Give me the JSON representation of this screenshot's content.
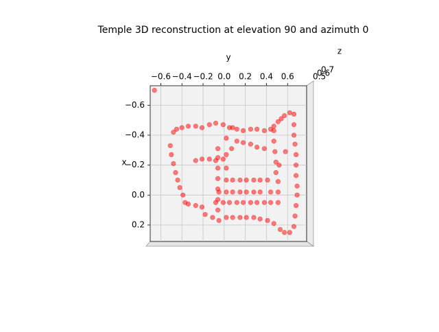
{
  "chart_data": {
    "type": "scatter",
    "title": "Temple 3D reconstruction at elevation 90 and azimuth 0",
    "xlabel": "y",
    "ylabel": "x",
    "zlabel": "z",
    "color": "#ff0000",
    "grid": true,
    "xlim": [
      -0.7,
      0.78
    ],
    "ylim": [
      -0.73,
      0.31
    ],
    "xticks": [
      {
        "value": -0.6,
        "label": "−0.6"
      },
      {
        "value": -0.4,
        "label": "−0.4"
      },
      {
        "value": -0.2,
        "label": "−0.2"
      },
      {
        "value": 0,
        "label": "0.0"
      },
      0.2,
      0.4,
      0.6
    ],
    "yticks": [
      {
        "value": -0.6,
        "label": "−0.6"
      },
      {
        "value": -0.4,
        "label": "−0.4"
      },
      {
        "value": -0.2,
        "label": "−0.2"
      },
      {
        "value": 0,
        "label": "0.0"
      },
      0.2
    ],
    "zticks": [
      0.5,
      0.6,
      0.7
    ],
    "x": [
      -0.48,
      -0.45,
      -0.4,
      -0.34,
      -0.27,
      -0.21,
      -0.14,
      -0.08,
      -0.01,
      0.05,
      0.12,
      0.18,
      0.25,
      0.31,
      0.38,
      0.44,
      0.47,
      0.51,
      0.54,
      0.57,
      0.62,
      0.66,
      -0.51,
      -0.5,
      -0.48,
      -0.46,
      -0.44,
      -0.42,
      -0.39,
      -0.37,
      -0.34,
      -0.27,
      -0.21,
      -0.18,
      -0.11,
      -0.05,
      0.02,
      0.08,
      0.15,
      0.21,
      0.28,
      0.34,
      0.41,
      0.47,
      0.53,
      0.57,
      0.62,
      0.66,
      0.67,
      0.68,
      0.69,
      0.69,
      0.68,
      0.68,
      0.68,
      0.67,
      0.66,
      0.66,
      0.47,
      0.47,
      0.48,
      0.49,
      0.49,
      0.51,
      0.51,
      0.51,
      -0.27,
      -0.21,
      -0.14,
      -0.08,
      -0.01,
      0.02,
      0.08,
      0.15,
      0.21,
      0.28,
      0.34,
      0.41,
      -0.05,
      0.02,
      0.08,
      0.15,
      0.21,
      0.28,
      0.34,
      0.44,
      -0.08,
      -0.01,
      0.05,
      0.12,
      0.18,
      0.25,
      0.31,
      0.38,
      0.44,
      -0.06,
      -0.06,
      -0.06,
      -0.06,
      -0.06,
      -0.06,
      -0.06,
      0.02,
      0.02,
      0.02,
      0.12,
      0.18,
      0.25,
      0.31,
      0.38,
      0.08,
      0.07,
      0.58,
      0.52,
      -0.66
    ],
    "values": [
      -0.42,
      -0.44,
      -0.45,
      -0.46,
      -0.46,
      -0.45,
      -0.47,
      -0.48,
      -0.47,
      -0.45,
      -0.44,
      -0.43,
      -0.44,
      -0.44,
      -0.43,
      -0.44,
      -0.46,
      -0.49,
      -0.51,
      -0.53,
      -0.55,
      -0.54,
      -0.33,
      -0.27,
      -0.21,
      -0.15,
      -0.1,
      -0.05,
      0.0,
      0.05,
      0.06,
      0.07,
      0.08,
      0.13,
      0.15,
      0.17,
      0.15,
      0.15,
      0.15,
      0.15,
      0.15,
      0.16,
      0.17,
      0.19,
      0.23,
      0.25,
      0.25,
      0.21,
      0.14,
      0.07,
      0.0,
      -0.06,
      -0.13,
      -0.2,
      -0.27,
      -0.34,
      -0.4,
      -0.47,
      -0.43,
      -0.36,
      -0.29,
      -0.22,
      -0.15,
      -0.09,
      -0.02,
      0.05,
      -0.23,
      -0.24,
      -0.24,
      -0.23,
      -0.24,
      -0.1,
      -0.1,
      -0.1,
      -0.1,
      -0.1,
      -0.1,
      -0.1,
      -0.02,
      -0.02,
      -0.02,
      -0.02,
      -0.02,
      -0.02,
      -0.02,
      -0.02,
      0.05,
      0.05,
      0.05,
      0.05,
      0.05,
      0.05,
      0.05,
      0.05,
      0.05,
      -0.31,
      -0.25,
      -0.18,
      -0.11,
      -0.04,
      0.03,
      0.1,
      -0.38,
      -0.27,
      -0.18,
      -0.36,
      -0.35,
      -0.34,
      -0.32,
      -0.31,
      -0.45,
      -0.31,
      -0.29,
      -0.2,
      -0.7
    ]
  }
}
